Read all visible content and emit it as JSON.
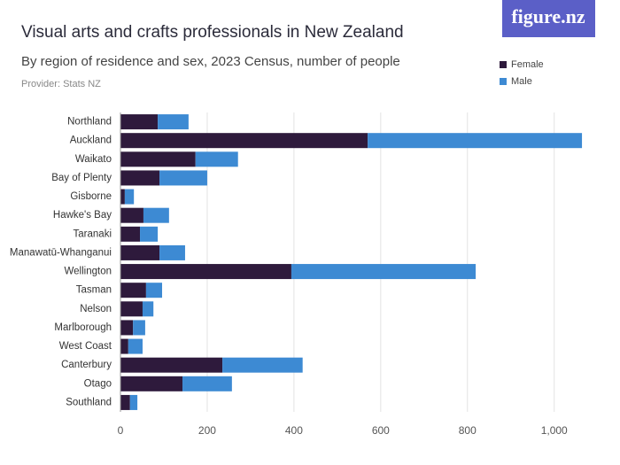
{
  "logo": "figure.nz",
  "chart_data": {
    "type": "stacked-barh",
    "title": "Visual arts and crafts professionals in New Zealand",
    "subtitle": "By region of residence and sex, 2023 Census, number of people",
    "provider": "Provider: Stats NZ",
    "categories": [
      "Northland",
      "Auckland",
      "Waikato",
      "Bay of Plenty",
      "Gisborne",
      "Hawke's Bay",
      "Taranaki",
      "Manawatū-Whanganui",
      "Wellington",
      "Tasman",
      "Nelson",
      "Marlborough",
      "West Coast",
      "Canterbury",
      "Otago",
      "Southland"
    ],
    "series": [
      {
        "name": "Female",
        "color": "#2e1a3c",
        "values": [
          86,
          570,
          173,
          90,
          10,
          53,
          45,
          90,
          394,
          59,
          51,
          29,
          18,
          235,
          143,
          22
        ]
      },
      {
        "name": "Male",
        "color": "#3d8ad3",
        "values": [
          71,
          494,
          98,
          110,
          21,
          59,
          41,
          59,
          425,
          37,
          25,
          28,
          33,
          185,
          114,
          17
        ]
      }
    ],
    "xlim": [
      0,
      1070
    ],
    "xticks": [
      0,
      200,
      400,
      600,
      800,
      {
        "value": 1000,
        "label": "1,000"
      }
    ],
    "grid": true
  }
}
